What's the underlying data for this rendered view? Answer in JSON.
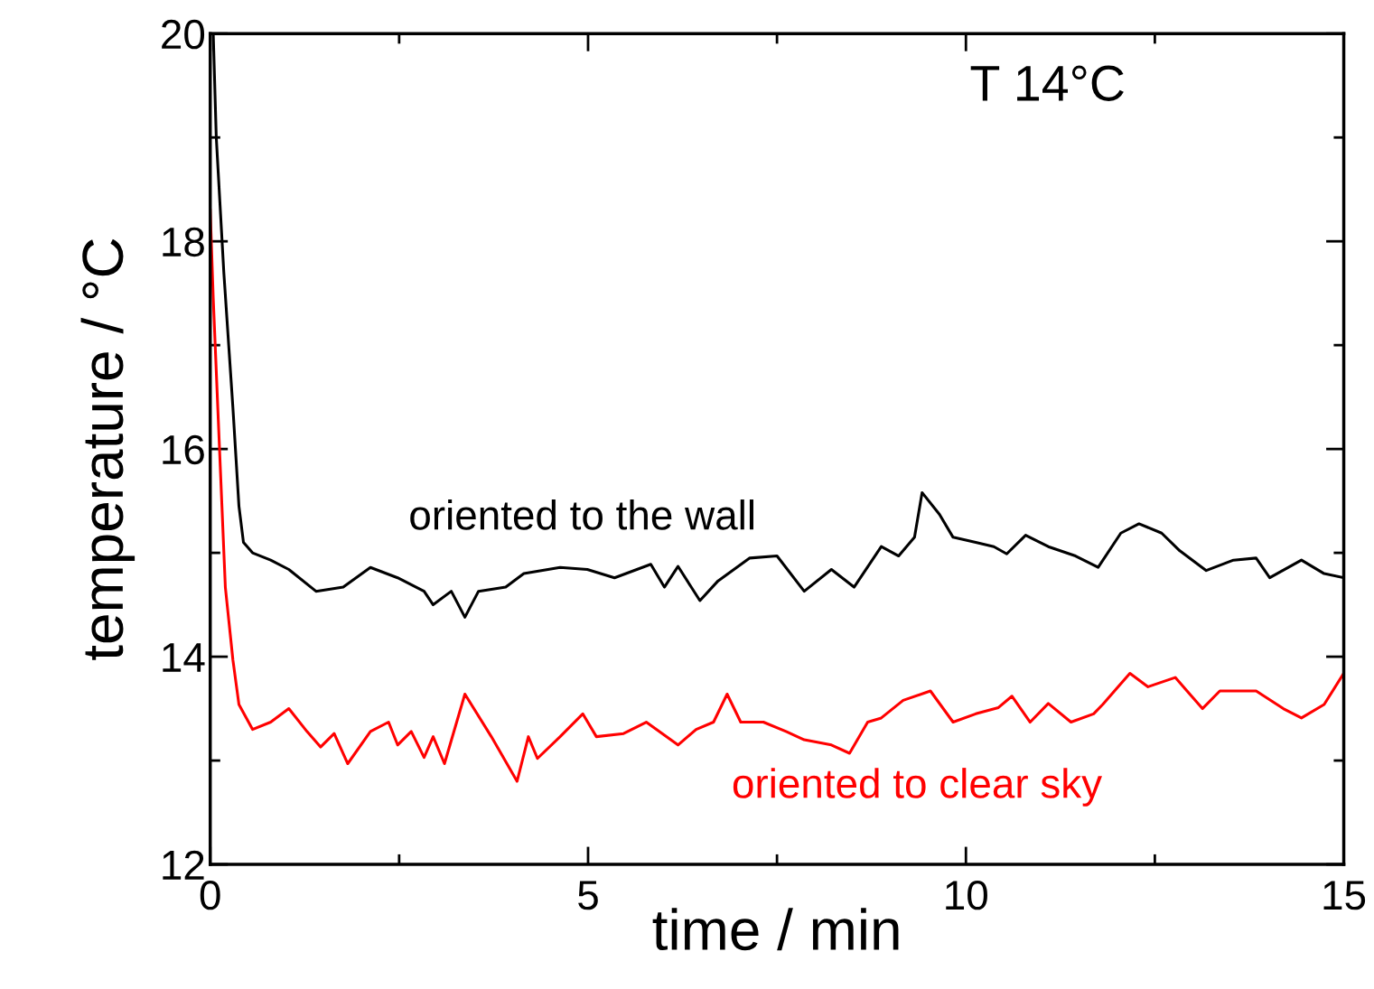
{
  "chart_data": {
    "type": "line",
    "xlabel": "time / min",
    "ylabel": "temperature / °C",
    "annotations": [
      "T 14°C"
    ],
    "xlim": [
      0,
      15
    ],
    "ylim": [
      12,
      20
    ],
    "xticks": [
      0,
      {
        "value": 2.5,
        "label": null
      },
      5,
      {
        "value": 7.5,
        "label": null
      },
      10,
      {
        "value": 12.5,
        "label": null
      },
      15
    ],
    "yticks": [
      12,
      {
        "value": 13,
        "label": null
      },
      14,
      {
        "value": 15,
        "label": null
      },
      16,
      {
        "value": 17,
        "label": null
      },
      18,
      {
        "value": 19,
        "label": null
      },
      20
    ],
    "grid": false,
    "legend": false,
    "marker": "none",
    "line_style": "solid",
    "series": [
      {
        "name": "oriented to the wall",
        "color": "#000000",
        "x": [
          0.04,
          0.08,
          0.18,
          0.3,
          0.38,
          0.44,
          0.56,
          0.8,
          1.04,
          1.4,
          1.76,
          2.12,
          2.48,
          2.83,
          2.95,
          3.19,
          3.37,
          3.55,
          3.91,
          4.15,
          4.63,
          4.99,
          5.35,
          5.83,
          6.01,
          6.19,
          6.48,
          6.72,
          7.14,
          7.5,
          7.86,
          8.22,
          8.52,
          8.88,
          9.11,
          9.32,
          9.42,
          9.65,
          9.83,
          10.13,
          10.37,
          10.54,
          10.79,
          11.09,
          11.45,
          11.75,
          12.05,
          12.29,
          12.59,
          12.83,
          13.18,
          13.54,
          13.84,
          14.02,
          14.44,
          14.74,
          15
        ],
        "values": [
          20,
          19.0,
          17.7,
          16.4,
          15.45,
          15.1,
          15.0,
          14.93,
          14.84,
          14.63,
          14.67,
          14.86,
          14.76,
          14.63,
          14.5,
          14.63,
          14.38,
          14.63,
          14.67,
          14.8,
          14.86,
          14.84,
          14.76,
          14.89,
          14.67,
          14.87,
          14.54,
          14.73,
          14.95,
          14.97,
          14.63,
          14.84,
          14.67,
          15.06,
          14.97,
          15.15,
          15.58,
          15.37,
          15.15,
          15.1,
          15.06,
          14.99,
          15.17,
          15.06,
          14.97,
          14.86,
          15.19,
          15.28,
          15.19,
          15.02,
          14.83,
          14.93,
          14.95,
          14.76,
          14.93,
          14.8,
          14.76
        ]
      },
      {
        "name": "oriented to clear sky",
        "color": "#ff0000",
        "x": [
          0,
          0.04,
          0.1,
          0.2,
          0.3,
          0.38,
          0.56,
          0.8,
          1.04,
          1.28,
          1.46,
          1.64,
          1.82,
          2.12,
          2.36,
          2.48,
          2.66,
          2.83,
          2.95,
          3.1,
          3.37,
          3.72,
          4.06,
          4.21,
          4.33,
          4.63,
          4.93,
          5.11,
          5.47,
          5.77,
          6.19,
          6.43,
          6.66,
          6.84,
          7.02,
          7.32,
          7.62,
          7.86,
          8.22,
          8.46,
          8.7,
          8.88,
          9.17,
          9.53,
          9.83,
          10.13,
          10.43,
          10.61,
          10.85,
          11.09,
          11.39,
          11.69,
          11.81,
          12.17,
          12.41,
          12.77,
          13.13,
          13.36,
          13.84,
          14.2,
          14.44,
          14.74,
          15
        ],
        "values": [
          18.3,
          17.45,
          16.4,
          14.67,
          13.97,
          13.54,
          13.3,
          13.37,
          13.5,
          13.28,
          13.13,
          13.26,
          12.97,
          13.28,
          13.37,
          13.15,
          13.28,
          13.03,
          13.23,
          12.97,
          13.64,
          13.23,
          12.8,
          13.23,
          13.02,
          13.23,
          13.45,
          13.23,
          13.26,
          13.37,
          13.15,
          13.3,
          13.37,
          13.64,
          13.37,
          13.37,
          13.28,
          13.2,
          13.15,
          13.07,
          13.37,
          13.41,
          13.58,
          13.67,
          13.37,
          13.45,
          13.51,
          13.62,
          13.37,
          13.55,
          13.37,
          13.45,
          13.54,
          13.84,
          13.71,
          13.8,
          13.5,
          13.67,
          13.67,
          13.5,
          13.41,
          13.54,
          13.84
        ]
      }
    ]
  }
}
